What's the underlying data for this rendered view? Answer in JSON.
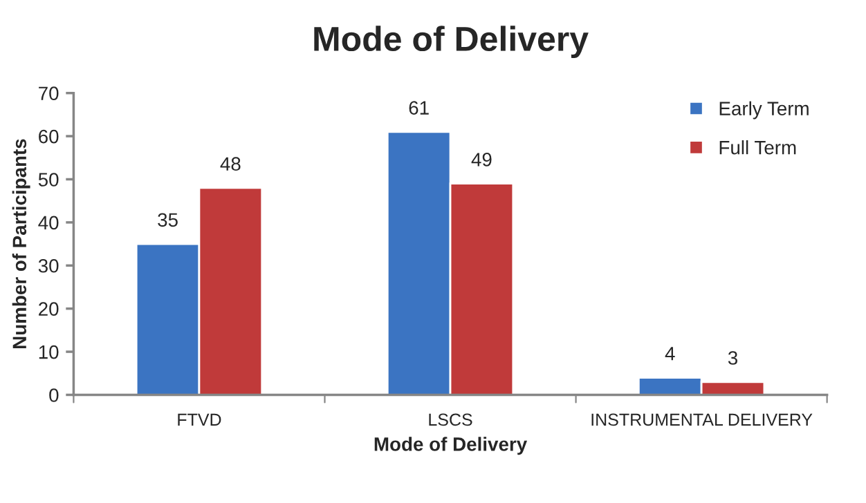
{
  "chart_data": {
    "type": "bar",
    "title": "Mode of Delivery",
    "xlabel": "Mode of Delivery",
    "ylabel": "Number of Participants",
    "categories": [
      "FTVD",
      "LSCS",
      "INSTRUMENTAL DELIVERY"
    ],
    "series": [
      {
        "name": "Early Term",
        "color": "#3b74c2",
        "values": [
          35,
          61,
          4
        ]
      },
      {
        "name": "Full Term",
        "color": "#c03a3a",
        "values": [
          48,
          49,
          3
        ]
      }
    ],
    "ylim": [
      0,
      70
    ],
    "yticks": [
      0,
      10,
      20,
      30,
      40,
      50,
      60,
      70
    ],
    "data_labels": true,
    "legend": "top right",
    "grid": false
  }
}
